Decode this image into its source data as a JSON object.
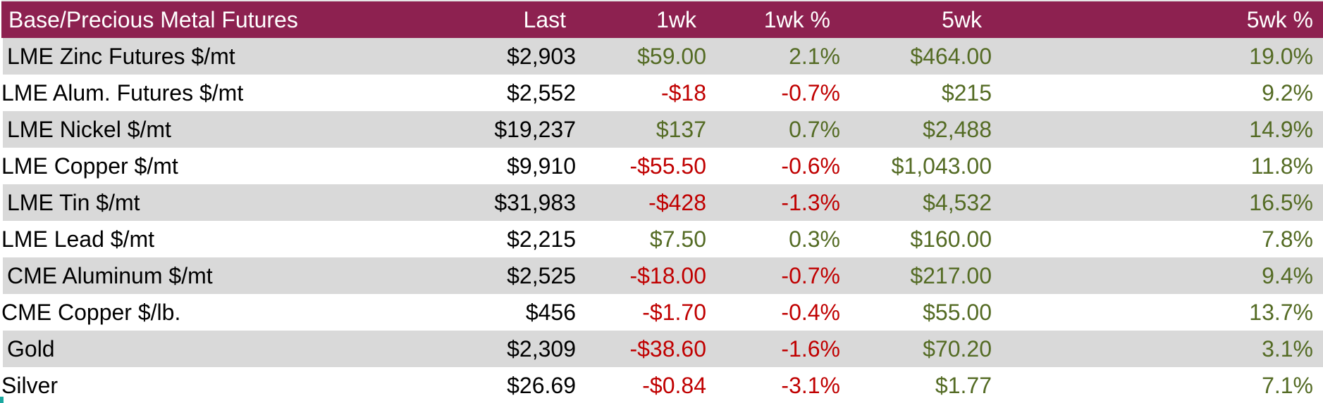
{
  "chart_data": {
    "type": "table",
    "title": "Base/Precious Metal Futures",
    "columns": [
      "Last",
      "1wk",
      "1wk %",
      "5wk",
      "5wk %"
    ],
    "rows": [
      {
        "name": "LME Zinc Futures $/mt",
        "last": "$2,903",
        "wk1": "$59.00",
        "wk1_pct": "2.1%",
        "wk5": "$464.00",
        "wk5_pct": "19.0%",
        "wk1_dir": "up",
        "wk5_dir": "up"
      },
      {
        "name": "LME Alum. Futures $/mt",
        "last": "$2,552",
        "wk1": "-$18",
        "wk1_pct": "-0.7%",
        "wk5": "$215",
        "wk5_pct": "9.2%",
        "wk1_dir": "down",
        "wk5_dir": "up"
      },
      {
        "name": "LME Nickel $/mt",
        "last": "$19,237",
        "wk1": "$137",
        "wk1_pct": "0.7%",
        "wk5": "$2,488",
        "wk5_pct": "14.9%",
        "wk1_dir": "up",
        "wk5_dir": "up"
      },
      {
        "name": "LME Copper $/mt",
        "last": "$9,910",
        "wk1": "-$55.50",
        "wk1_pct": "-0.6%",
        "wk5": "$1,043.00",
        "wk5_pct": "11.8%",
        "wk1_dir": "down",
        "wk5_dir": "up"
      },
      {
        "name": "LME Tin $/mt",
        "last": "$31,983",
        "wk1": "-$428",
        "wk1_pct": "-1.3%",
        "wk5": "$4,532",
        "wk5_pct": "16.5%",
        "wk1_dir": "down",
        "wk5_dir": "up"
      },
      {
        "name": "LME Lead $/mt",
        "last": "$2,215",
        "wk1": "$7.50",
        "wk1_pct": "0.3%",
        "wk5": "$160.00",
        "wk5_pct": "7.8%",
        "wk1_dir": "up",
        "wk5_dir": "up"
      },
      {
        "name": "CME Aluminum $/mt",
        "last": "$2,525",
        "wk1": "-$18.00",
        "wk1_pct": "-0.7%",
        "wk5": "$217.00",
        "wk5_pct": "9.4%",
        "wk1_dir": "down",
        "wk5_dir": "up"
      },
      {
        "name": "CME Copper $/lb.",
        "last": "$456",
        "wk1": "-$1.70",
        "wk1_pct": "-0.4%",
        "wk5": "$55.00",
        "wk5_pct": "13.7%",
        "wk1_dir": "down",
        "wk5_dir": "up"
      },
      {
        "name": "Gold",
        "last": "$2,309",
        "wk1": "-$38.60",
        "wk1_pct": "-1.6%",
        "wk5": "$70.20",
        "wk5_pct": "3.1%",
        "wk1_dir": "down",
        "wk5_dir": "up"
      },
      {
        "name": "Silver",
        "last": "$26.69",
        "wk1": "-$0.84",
        "wk1_pct": "-3.1%",
        "wk5": "$1.77",
        "wk5_pct": "7.1%",
        "wk1_dir": "down",
        "wk5_dir": "up"
      }
    ]
  },
  "colors": {
    "header_bg": "#8D2150",
    "header_text": "#FFFFFF",
    "positive": "#546B24",
    "negative": "#C00000",
    "row_alt": "#D9D9D9",
    "row_base": "#FFFFFF",
    "text": "#000000"
  }
}
